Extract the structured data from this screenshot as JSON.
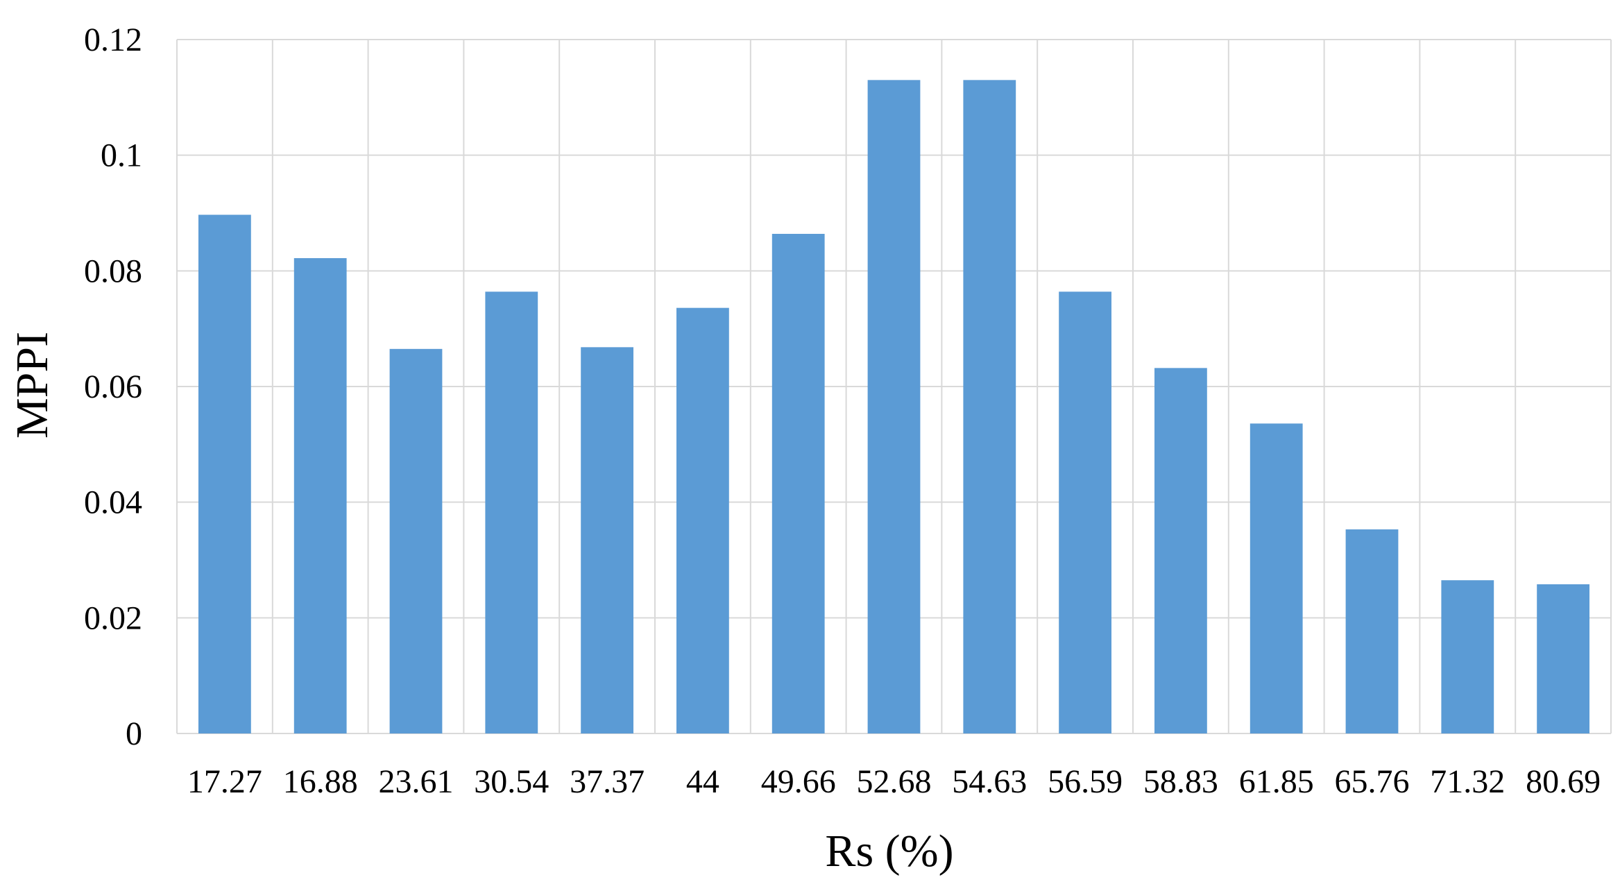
{
  "chart_data": {
    "type": "bar",
    "title": "",
    "xlabel": "Rs (%)",
    "ylabel": "MPPI",
    "categories": [
      "17.27",
      "16.88",
      "23.61",
      "30.54",
      "37.37",
      "44",
      "49.66",
      "52.68",
      "54.63",
      "56.59",
      "58.83",
      "61.85",
      "65.76",
      "71.32",
      "80.69"
    ],
    "values": [
      0.0897,
      0.0822,
      0.0665,
      0.0764,
      0.0668,
      0.0736,
      0.0864,
      0.113,
      0.113,
      0.0764,
      0.0632,
      0.0536,
      0.0353,
      0.0265,
      0.0258
    ],
    "ylim": [
      0,
      0.12
    ],
    "yticks": [
      "0",
      "0.02",
      "0.04",
      "0.06",
      "0.08",
      "0.1",
      "0.12"
    ],
    "grid": true,
    "legend": "none",
    "bar_color": "#5b9bd5",
    "grid_color": "#d9d9d9"
  }
}
